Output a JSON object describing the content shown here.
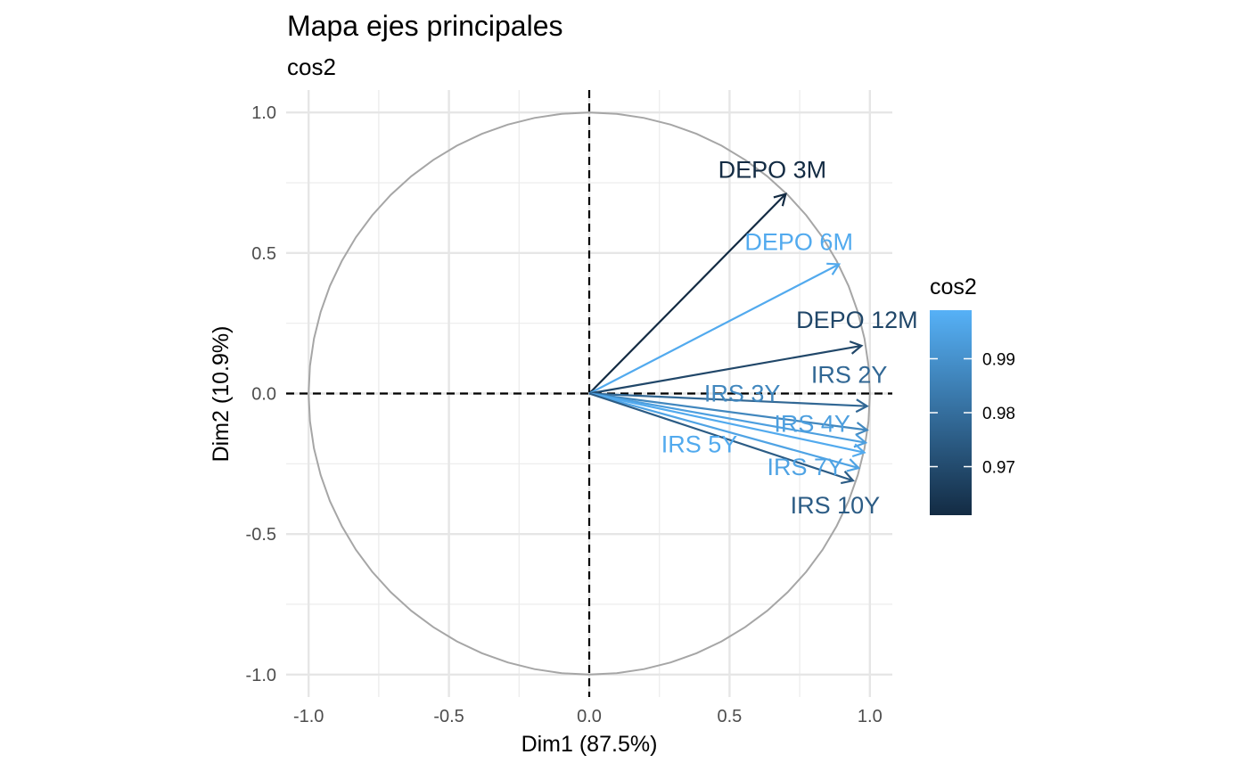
{
  "chart_data": {
    "type": "pca-variable-map",
    "title": "Mapa ejes principales",
    "subtitle": "cos2",
    "xlabel": "Dim1 (87.5%)",
    "ylabel": "Dim2 (10.9%)",
    "xlim": [
      -1.08,
      1.08
    ],
    "ylim": [
      -1.08,
      1.08
    ],
    "xticks": [
      -1.0,
      -0.5,
      0.0,
      0.5,
      1.0
    ],
    "yticks": [
      -1.0,
      -0.5,
      0.0,
      0.5,
      1.0
    ],
    "x_tick_labels": [
      "-1.0",
      "-0.5",
      "0.0",
      "0.5",
      "1.0"
    ],
    "y_tick_labels": [
      "-1.0",
      "-0.5",
      "0.0",
      "0.5",
      "1.0"
    ],
    "grid": true,
    "unit_circle": true,
    "color_scale": {
      "title": "cos2",
      "low": 0.961,
      "high": 0.999,
      "low_color": "#132b43",
      "high_color": "#56b1f7",
      "tick_values": [
        0.97,
        0.98,
        0.99
      ],
      "tick_labels": [
        "0.97",
        "0.98",
        "0.99"
      ],
      "legend_position": "right"
    },
    "variables": [
      {
        "name": "DEPO 3M",
        "x": 0.7,
        "y": 0.71,
        "cos2": 0.961
      },
      {
        "name": "DEPO 6M",
        "x": 0.89,
        "y": 0.46,
        "cos2": 0.997
      },
      {
        "name": "DEPO 12M",
        "x": 0.97,
        "y": 0.17,
        "cos2": 0.969
      },
      {
        "name": "IRS 2Y",
        "x": 0.99,
        "y": -0.045,
        "cos2": 0.978
      },
      {
        "name": "IRS 3Y",
        "x": 0.99,
        "y": -0.13,
        "cos2": 0.987
      },
      {
        "name": "IRS 4Y",
        "x": 0.985,
        "y": -0.175,
        "cos2": 0.994
      },
      {
        "name": "IRS 5Y",
        "x": 0.98,
        "y": -0.21,
        "cos2": 0.997
      },
      {
        "name": "IRS 7Y",
        "x": 0.96,
        "y": -0.265,
        "cos2": 0.995
      },
      {
        "name": "IRS 10Y",
        "x": 0.94,
        "y": -0.31,
        "cos2": 0.975
      }
    ]
  }
}
